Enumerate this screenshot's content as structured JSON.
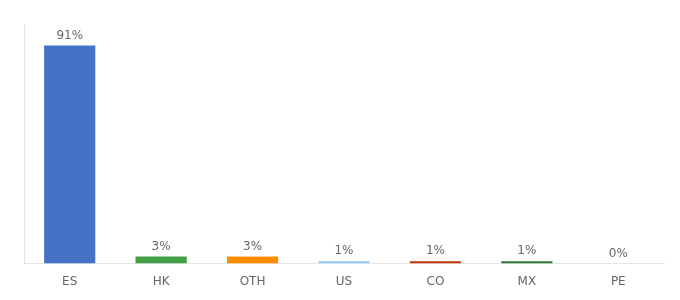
{
  "chart_data": {
    "type": "bar",
    "categories": [
      "ES",
      "HK",
      "OTH",
      "US",
      "CO",
      "MX",
      "PE"
    ],
    "values": [
      91,
      3,
      3,
      1,
      1,
      1,
      0
    ],
    "value_labels": [
      "91%",
      "3%",
      "3%",
      "1%",
      "1%",
      "1%",
      "0%"
    ],
    "data_labels": true,
    "colors": [
      "#4472C4",
      "#43A047",
      "#FB8C00",
      "#90CAF9",
      "#BF360C",
      "#2E7D32",
      "#9E9E9E"
    ],
    "ylim": [
      0,
      100
    ],
    "grid": false,
    "tick_labels": "x"
  }
}
